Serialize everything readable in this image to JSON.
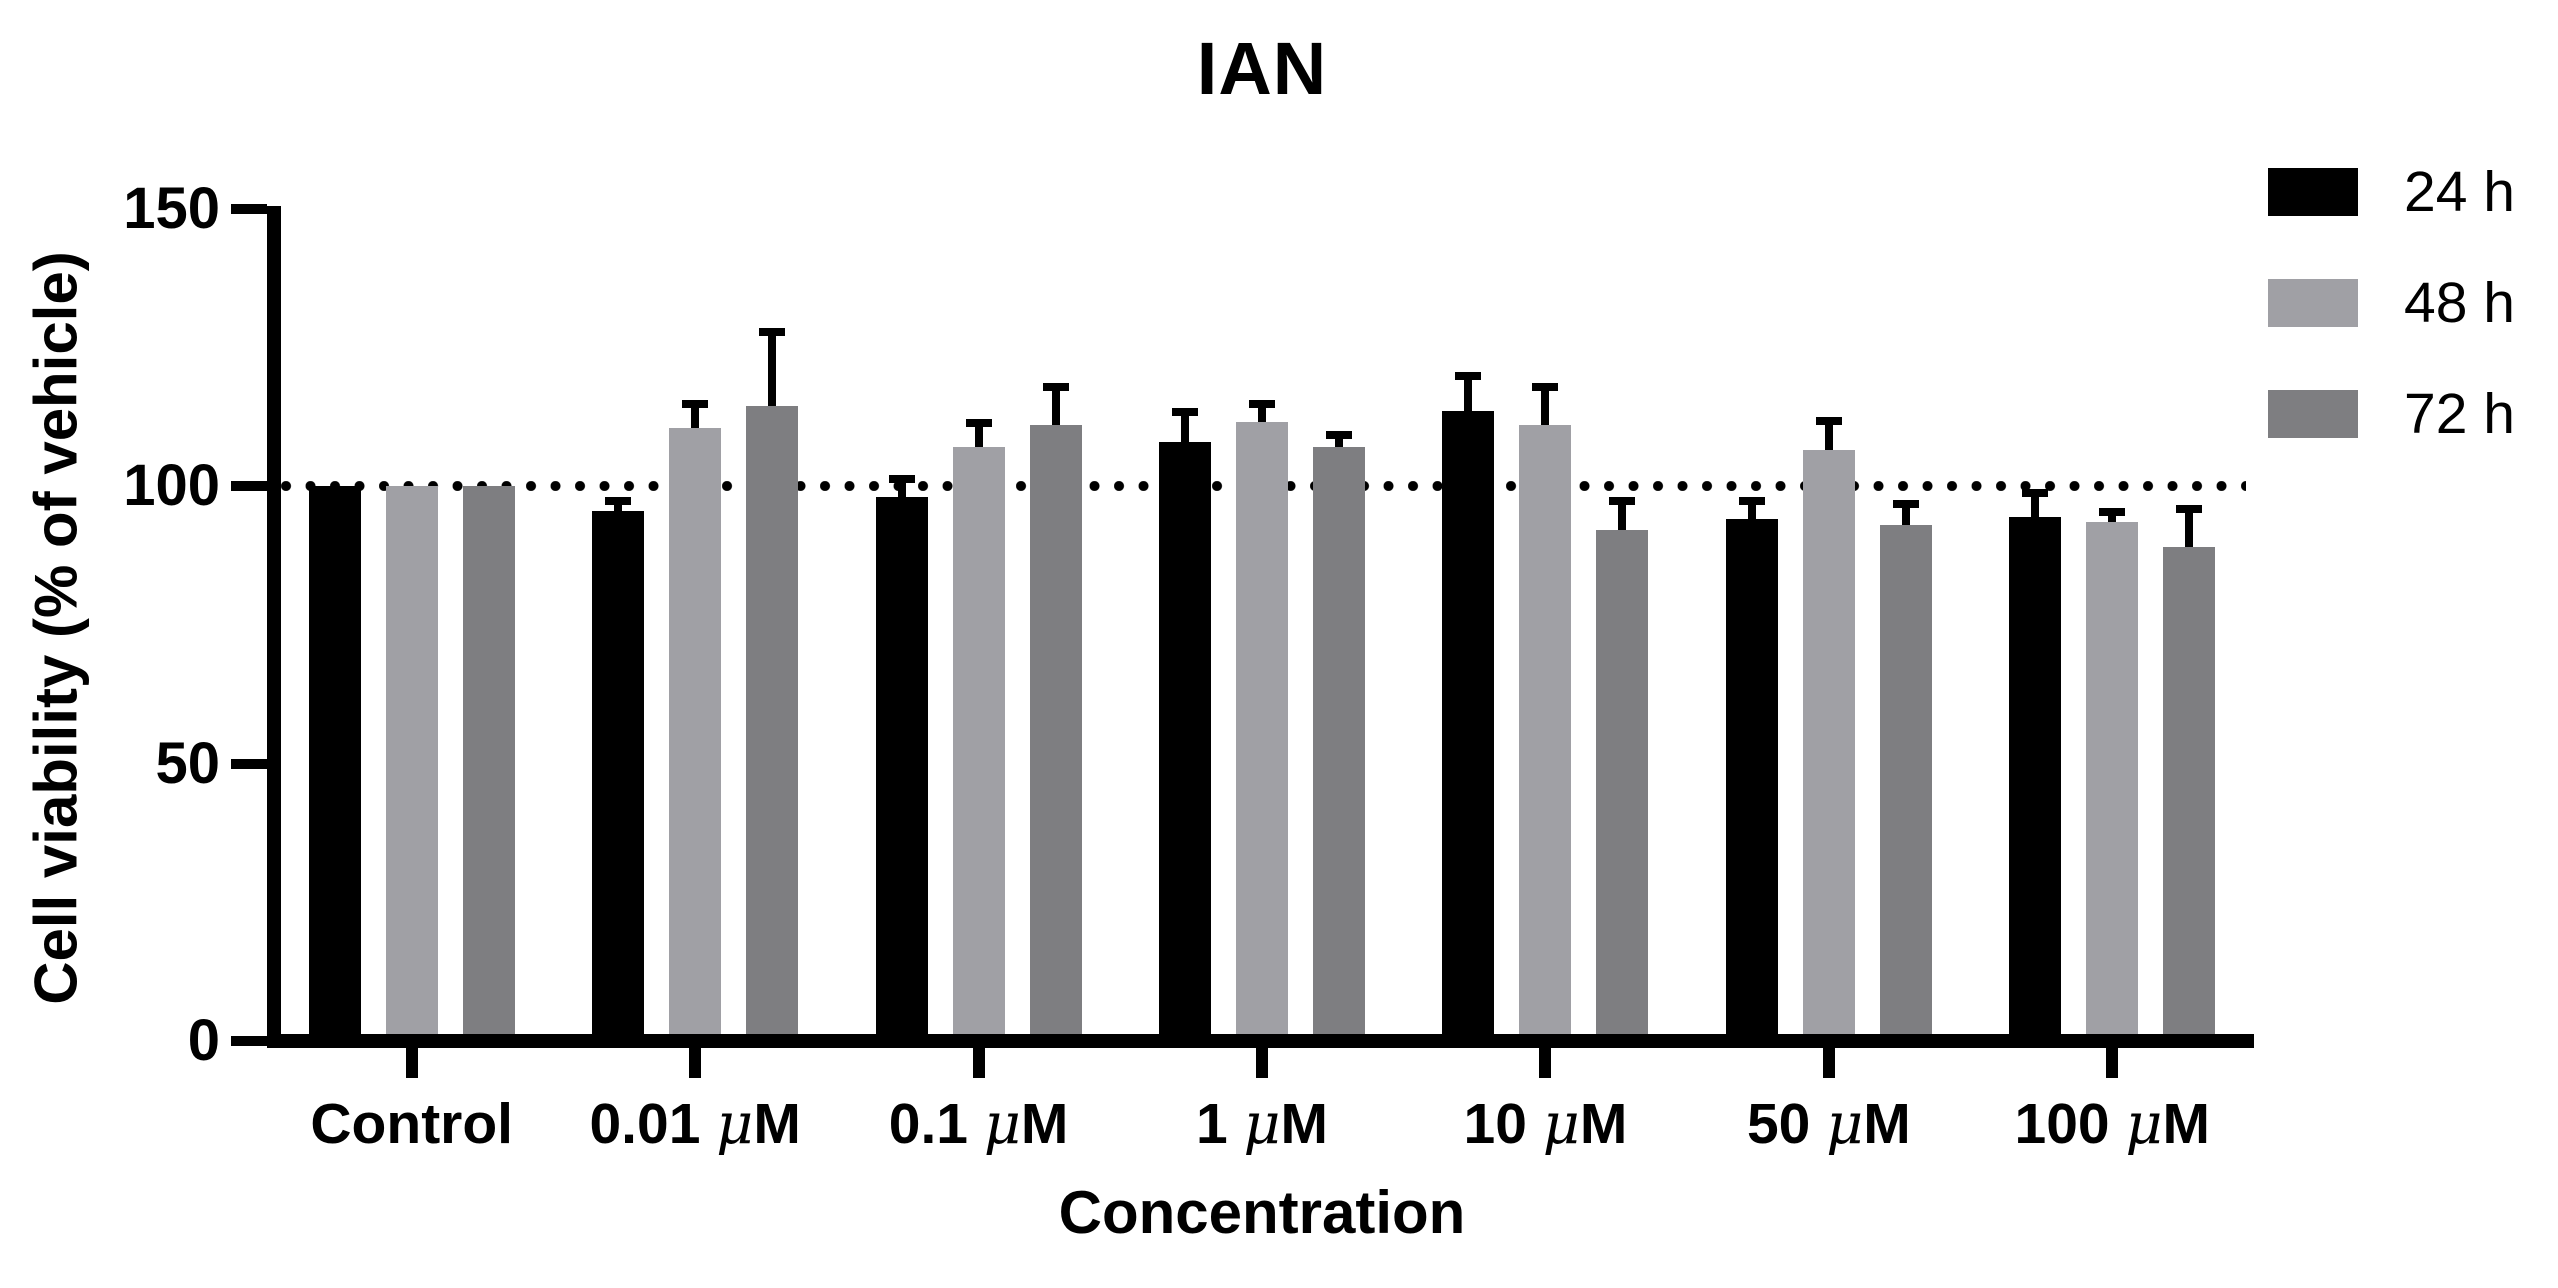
{
  "figure": {
    "title": "IAN",
    "x_axis_title": "Concentration",
    "y_axis_title": "Cell viability (% of vehicle)"
  },
  "chart_data": {
    "type": "bar",
    "title": "IAN",
    "xlabel": "Concentration",
    "ylabel": "Cell viability (% of vehicle)",
    "categories": [
      "Control",
      "0.01 μM",
      "0.1 μM",
      "1 μM",
      "10 μM",
      "50 μM",
      "100 μM"
    ],
    "yticks": [
      0,
      50,
      100,
      150
    ],
    "ylim": [
      0,
      150
    ],
    "grid": false,
    "reference_line_y": 100,
    "reference_line_style": "dotted",
    "error_bars": "upper-sd",
    "legend_position": "top-right",
    "series": [
      {
        "name": "24 h",
        "color": "#000000",
        "values": [
          100,
          95.5,
          98,
          108,
          113.5,
          94,
          94.5
        ],
        "errors": [
          0,
          2.5,
          4,
          6,
          7,
          4,
          5
        ]
      },
      {
        "name": "48 h",
        "color": "#A0A0A5",
        "values": [
          100,
          110.5,
          107,
          111.5,
          111,
          106.5,
          93.5
        ],
        "errors": [
          0,
          5,
          5,
          4,
          7.5,
          6,
          2.5
        ]
      },
      {
        "name": "72 h",
        "color": "#7E7E81",
        "values": [
          100,
          114.5,
          111,
          107,
          92,
          93,
          89
        ],
        "errors": [
          0,
          14,
          7.5,
          3,
          6,
          4.5,
          7.5
        ]
      }
    ]
  }
}
